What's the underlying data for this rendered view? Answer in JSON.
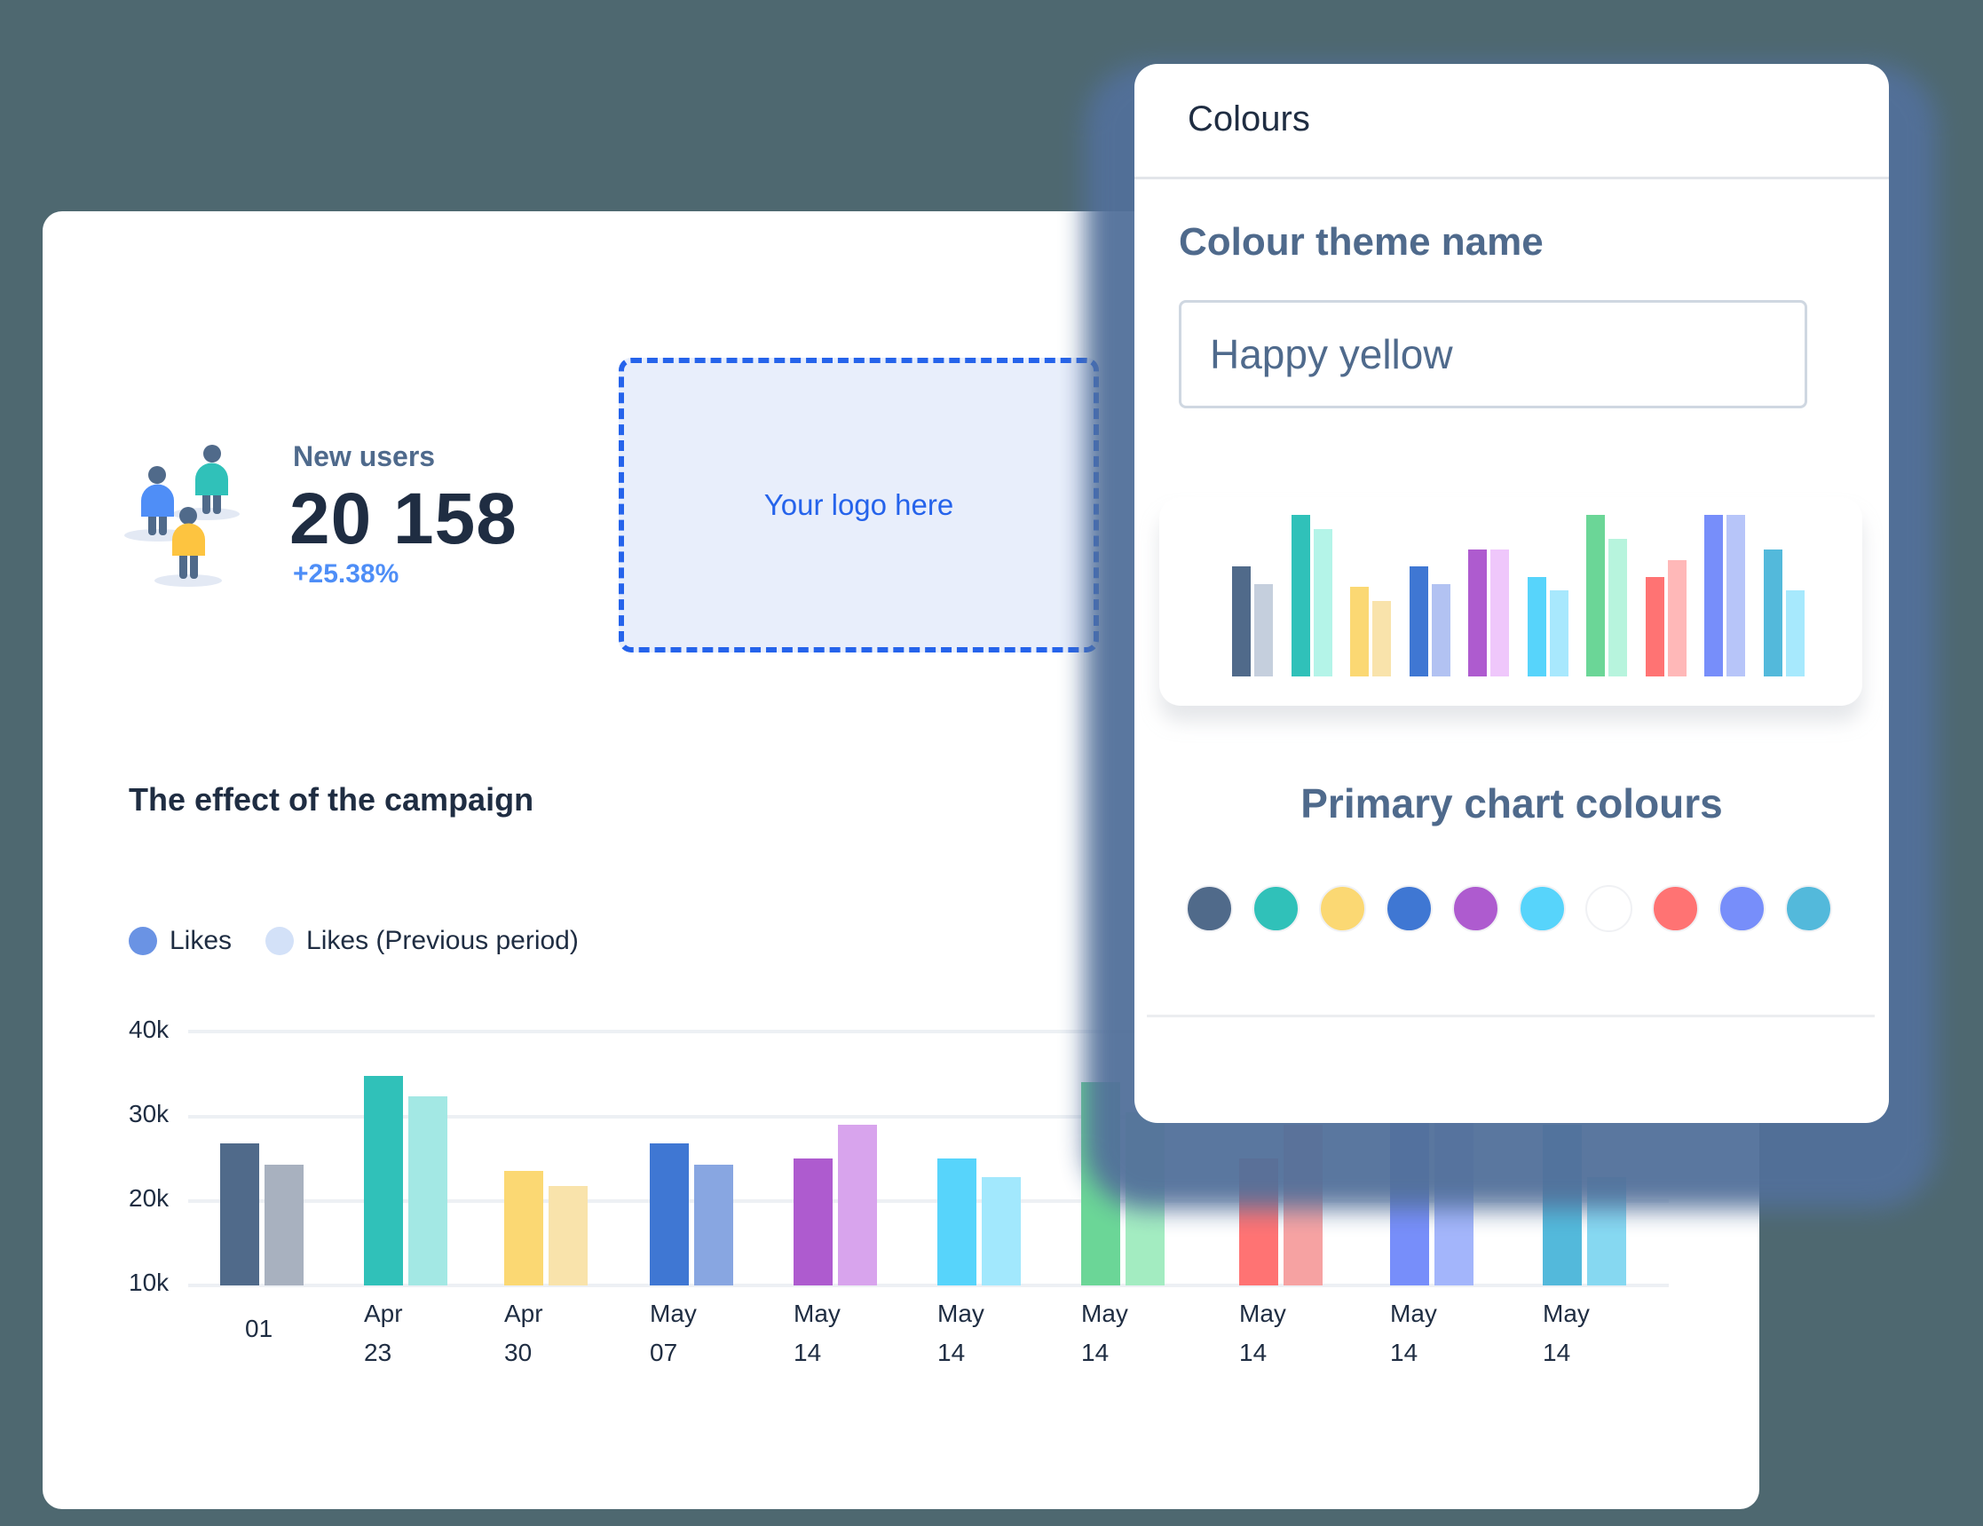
{
  "stat": {
    "label": "New users",
    "value": "20 158",
    "change": "+25.38%",
    "icon": "users-group-icon"
  },
  "logo_placeholder": {
    "text": "Your logo here"
  },
  "chart_section": {
    "title": "The effect of the campaign",
    "legend": [
      {
        "label": "Likes",
        "color": "#6a93e4"
      },
      {
        "label": "Likes (Previous period)",
        "color": "#d3e1f8"
      }
    ]
  },
  "colours_panel": {
    "title": "Colours",
    "theme_name_label": "Colour theme name",
    "theme_name_value": "Happy yellow",
    "primary_colours_label": "Primary chart colours",
    "swatches": [
      "#506a8a",
      "#30c1b9",
      "#fbd873",
      "#3f77d3",
      "#ae5bcf",
      "#57d4fb",
      "#ffffff",
      "#ff7373",
      "#778efa",
      "#53b9db"
    ],
    "preview_bars": [
      {
        "primary": "#506a8a",
        "secondary": "#c5cfdd",
        "h1": 124,
        "h2": 104
      },
      {
        "primary": "#30c1b9",
        "secondary": "#b4f4e8",
        "h1": 182,
        "h2": 166
      },
      {
        "primary": "#fbd873",
        "secondary": "#f9e3ab",
        "h1": 101,
        "h2": 85
      },
      {
        "primary": "#3f77d3",
        "secondary": "#b2c2f2",
        "h1": 124,
        "h2": 104
      },
      {
        "primary": "#ae5bcf",
        "secondary": "#efc7fb",
        "h1": 143,
        "h2": 143
      },
      {
        "primary": "#57d4fb",
        "secondary": "#a8e8fd",
        "h1": 112,
        "h2": 97
      },
      {
        "primary": "#6bd697",
        "secondary": "#b7f4dd",
        "h1": 182,
        "h2": 155
      },
      {
        "primary": "#ff7373",
        "secondary": "#ffb8b8",
        "h1": 112,
        "h2": 131
      },
      {
        "primary": "#778efa",
        "secondary": "#b7c5f9",
        "h1": 182,
        "h2": 182
      },
      {
        "primary": "#53b9db",
        "secondary": "#a7e9fd",
        "h1": 143,
        "h2": 97
      }
    ]
  },
  "chart_data": {
    "type": "bar",
    "title": "The effect of the campaign",
    "xlabel": "",
    "ylabel": "",
    "ylim": [
      10000,
      40000
    ],
    "yticks": [
      "10k",
      "20k",
      "30k",
      "40k"
    ],
    "grid": true,
    "legend_position": "top-left",
    "categories": [
      "01",
      "Apr 23",
      "Apr 30",
      "May 07",
      "May 14",
      "May 14",
      "May 14",
      "May 14",
      "May 14",
      "May 14"
    ],
    "series": [
      {
        "name": "Likes",
        "values": [
          26800,
          34800,
          23500,
          26800,
          25000,
          25000,
          34000,
          25000,
          29200,
          29000
        ]
      },
      {
        "name": "Likes (Previous period)",
        "values": [
          24300,
          32300,
          21800,
          24300,
          29000,
          22800,
          30500,
          29000,
          29200,
          22800
        ]
      }
    ],
    "bar_colors": [
      [
        "#506a8a",
        "#a8b1bf"
      ],
      [
        "#30c1b9",
        "#a3e8e4"
      ],
      [
        "#fbd873",
        "#f9e3ab"
      ],
      [
        "#3f77d3",
        "#88a6e1"
      ],
      [
        "#ae5bcf",
        "#d8a4ed"
      ],
      [
        "#57d4fb",
        "#a2e8fd"
      ],
      [
        "#6bd697",
        "#a3ecc1"
      ],
      [
        "#ff7373",
        "#f6a2a2"
      ],
      [
        "#778efa",
        "#a3b5fb"
      ],
      [
        "#53b9db",
        "#86d8f1"
      ]
    ],
    "x_label_lines": [
      [
        "",
        "01"
      ],
      [
        "Apr",
        "23"
      ],
      [
        "Apr",
        "30"
      ],
      [
        "May",
        "07"
      ],
      [
        "May",
        "14"
      ],
      [
        "May",
        "14"
      ],
      [
        "May",
        "14"
      ],
      [
        "May",
        "14"
      ],
      [
        "May",
        "14"
      ],
      [
        "May",
        "14"
      ]
    ]
  }
}
